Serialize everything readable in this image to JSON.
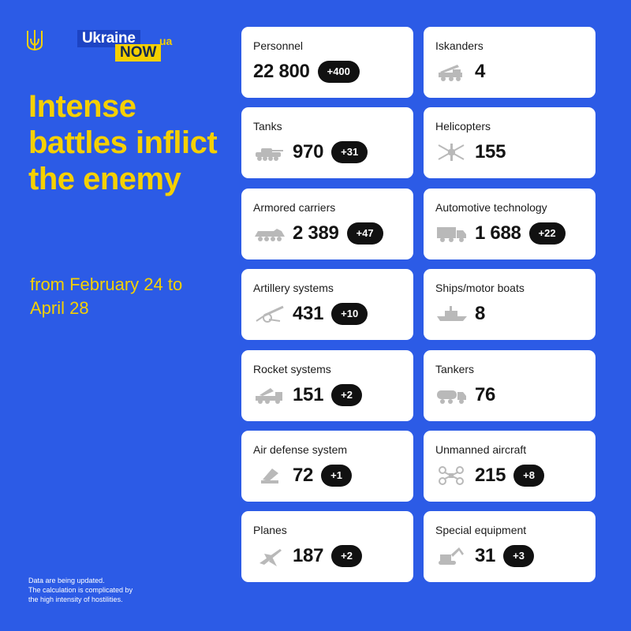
{
  "brand": {
    "emblem_icon": "trident-icon",
    "logo_word1": "Ukraine",
    "logo_word2": "NOW",
    "logo_suffix": "ua"
  },
  "headline": "Intense battles inflict the enemy",
  "date_range": "from February 24 to April 28",
  "footnote": {
    "line1": "Data are being updated.",
    "line2": "The calculation is complicated by",
    "line3": "the high intensity of hostilities."
  },
  "colors": {
    "background": "#2c5be6",
    "accent": "#f5d000",
    "card": "#ffffff",
    "delta_badge": "#111111"
  },
  "cards": [
    {
      "label": "Personnel",
      "value": "22 800",
      "delta": "+400",
      "icon": ""
    },
    {
      "label": "Iskanders",
      "value": "4",
      "delta": "",
      "icon": "missile-launcher-icon"
    },
    {
      "label": "Tanks",
      "value": "970",
      "delta": "+31",
      "icon": "tank-icon"
    },
    {
      "label": "Helicopters",
      "value": "155",
      "delta": "",
      "icon": "helicopter-icon"
    },
    {
      "label": "Armored carriers",
      "value": "2 389",
      "delta": "+47",
      "icon": "armored-carrier-icon"
    },
    {
      "label": "Automotive technology",
      "value": "1 688",
      "delta": "+22",
      "icon": "truck-icon"
    },
    {
      "label": "Artillery systems",
      "value": "431",
      "delta": "+10",
      "icon": "artillery-icon"
    },
    {
      "label": "Ships/motor boats",
      "value": "8",
      "delta": "",
      "icon": "ship-icon"
    },
    {
      "label": "Rocket systems",
      "value": "151",
      "delta": "+2",
      "icon": "rocket-launcher-icon"
    },
    {
      "label": "Tankers",
      "value": "76",
      "delta": "",
      "icon": "tanker-truck-icon"
    },
    {
      "label": "Air defense system",
      "value": "72",
      "delta": "+1",
      "icon": "air-defense-icon"
    },
    {
      "label": "Unmanned aircraft",
      "value": "215",
      "delta": "+8",
      "icon": "drone-icon"
    },
    {
      "label": "Planes",
      "value": "187",
      "delta": "+2",
      "icon": "plane-icon"
    },
    {
      "label": "Special equipment",
      "value": "31",
      "delta": "+3",
      "icon": "excavator-icon"
    }
  ]
}
